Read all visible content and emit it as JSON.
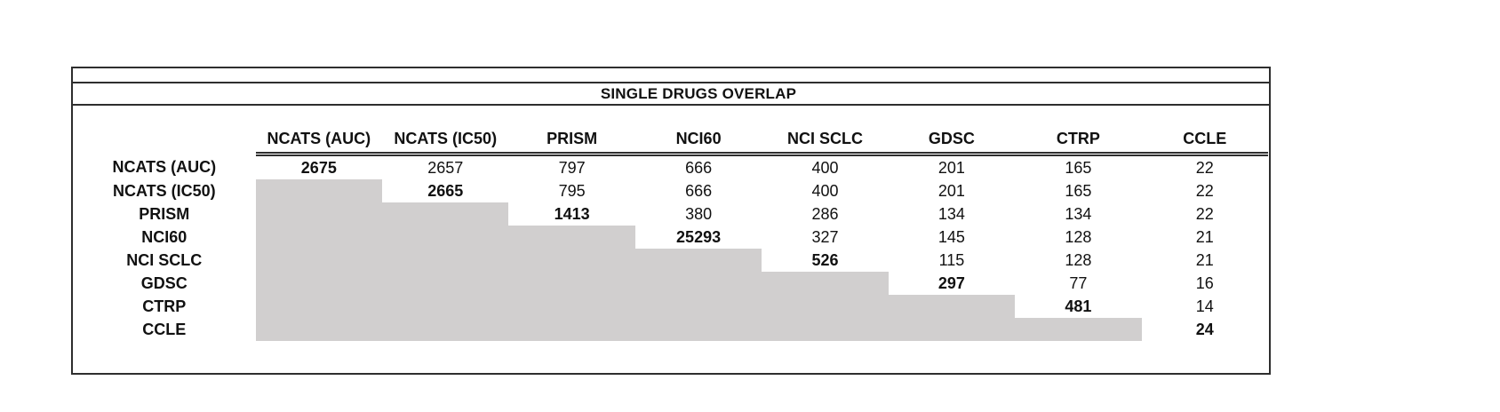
{
  "panel": {
    "title": "SINGLE DRUGS OVERLAP"
  },
  "colors": {
    "shaded_cell": "#d1cfcf",
    "line": "#2e2e2e",
    "text": "#111111",
    "background": "#ffffff"
  },
  "chart_data": {
    "type": "table",
    "title": "SINGLE DRUGS OVERLAP",
    "columns": [
      "NCATS (AUC)",
      "NCATS (IC50)",
      "PRISM",
      "NCI60",
      "NCI SCLC",
      "GDSC",
      "CTRP",
      "CCLE"
    ],
    "row_labels": [
      "NCATS (AUC)",
      "NCATS (IC50)",
      "PRISM",
      "NCI60",
      "NCI SCLC",
      "GDSC",
      "CTRP",
      "CCLE"
    ],
    "matrix": [
      [
        2675,
        2657,
        797,
        666,
        400,
        201,
        165,
        22
      ],
      [
        null,
        2665,
        795,
        666,
        400,
        201,
        165,
        22
      ],
      [
        null,
        null,
        1413,
        380,
        286,
        134,
        134,
        22
      ],
      [
        null,
        null,
        null,
        25293,
        327,
        145,
        128,
        21
      ],
      [
        null,
        null,
        null,
        null,
        526,
        115,
        128,
        21
      ],
      [
        null,
        null,
        null,
        null,
        null,
        297,
        77,
        16
      ],
      [
        null,
        null,
        null,
        null,
        null,
        null,
        481,
        14
      ],
      [
        null,
        null,
        null,
        null,
        null,
        null,
        null,
        24
      ]
    ],
    "layout_hints": {
      "diagonal_bold": true,
      "lower_triangle_shaded": true,
      "header_rule": "double",
      "gridlines": "none"
    }
  }
}
